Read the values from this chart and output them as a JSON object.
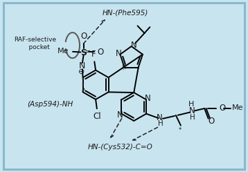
{
  "bg_color": "#c8e4ef",
  "border_color": "#88b8cc",
  "fig_width": 3.58,
  "fig_height": 2.49,
  "label_raf": "RAF-selective\n    pocket",
  "label_phe": "HN-(Phe595)",
  "label_asp": "(Asp594)-NH",
  "label_cys": "HN-(Cys532)-C=O",
  "text_color": "#1a1a1a"
}
